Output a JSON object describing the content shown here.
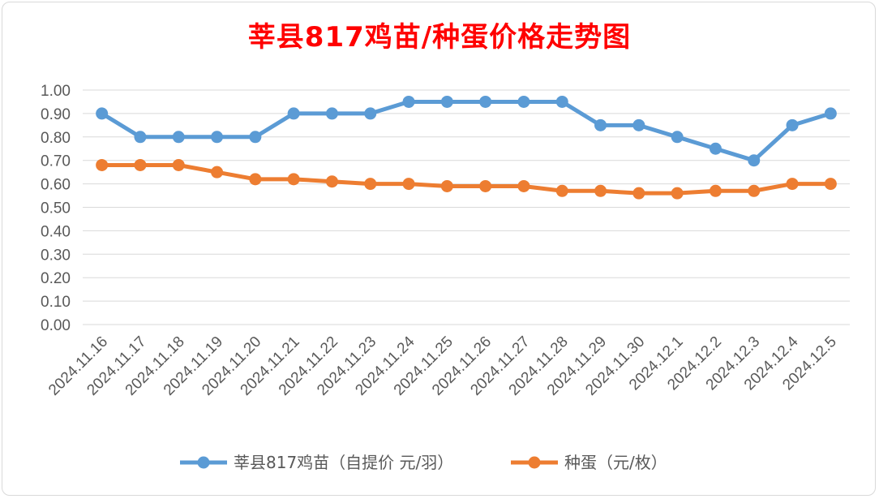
{
  "chart_data": {
    "type": "line",
    "title": "莘县817鸡苗/种蛋价格走势图",
    "xlabel": "",
    "ylabel": "",
    "ylim": [
      0,
      1
    ],
    "yticks": [
      "0.00",
      "0.10",
      "0.20",
      "0.30",
      "0.40",
      "0.50",
      "0.60",
      "0.70",
      "0.80",
      "0.90",
      "1.00"
    ],
    "grid": true,
    "legend_position": "bottom",
    "categories": [
      "2024.11.16",
      "2024.11.17",
      "2024.11.18",
      "2024.11.19",
      "2024.11.20",
      "2024.11.21",
      "2024.11.22",
      "2024.11.23",
      "2024.11.24",
      "2024.11.25",
      "2024.11.26",
      "2024.11.27",
      "2024.11.28",
      "2024.11.29",
      "2024.11.30",
      "2024.12.1",
      "2024.12.2",
      "2024.12.3",
      "2024.12.4",
      "2024.12.5"
    ],
    "series": [
      {
        "name": "莘县817鸡苗（自提价 元/羽）",
        "color": "#5b9bd5",
        "values": [
          0.9,
          0.8,
          0.8,
          0.8,
          0.8,
          0.9,
          0.9,
          0.9,
          0.95,
          0.95,
          0.95,
          0.95,
          0.95,
          0.85,
          0.85,
          0.8,
          0.75,
          0.7,
          0.85,
          0.9
        ]
      },
      {
        "name": "种蛋（元/枚）",
        "color": "#ed7d31",
        "values": [
          0.68,
          0.68,
          0.68,
          0.65,
          0.62,
          0.62,
          0.61,
          0.6,
          0.6,
          0.59,
          0.59,
          0.59,
          0.57,
          0.57,
          0.56,
          0.56,
          0.57,
          0.57,
          0.6,
          0.6
        ]
      }
    ]
  }
}
